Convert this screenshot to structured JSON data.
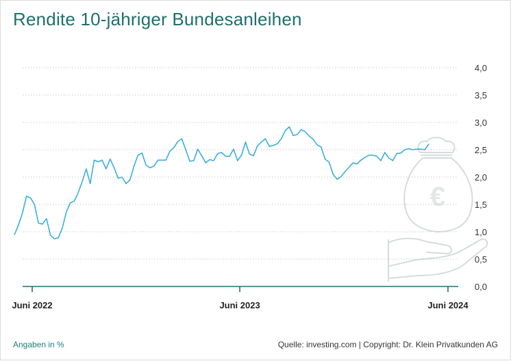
{
  "header": {
    "title": "Rendite 10-jähriger Bundesanleihen"
  },
  "footer": {
    "unit_note": "Angaben in %",
    "source": "Quelle: investing.com | Copyright: Dr. Klein Privatkunden AG"
  },
  "colors": {
    "line": "#3aaedc",
    "axis": "#1f6f6f",
    "title": "#1f6f6f",
    "grid": "#c8c8c8"
  },
  "watermark_icon": "money-bag-euro-in-hand-icon",
  "chart_data": {
    "type": "line",
    "title": "Rendite 10-jähriger Bundesanleihen",
    "xlabel": "",
    "ylabel": "",
    "ylim": [
      0,
      4.0
    ],
    "yticks": [
      0,
      0.5,
      1.0,
      1.5,
      2.0,
      2.5,
      3.0,
      3.5,
      4.0
    ],
    "ytick_labels": [
      "0,0",
      "0,5",
      "1,0",
      "1,5",
      "2,0",
      "2,5",
      "3,0",
      "3,5",
      "4,0"
    ],
    "xticks": [
      {
        "date": "2022-06-01",
        "label": "Juni 2022"
      },
      {
        "date": "2023-06-01",
        "label": "Juni 2023"
      },
      {
        "date": "2024-06-01",
        "label": "Juni 2024"
      }
    ],
    "grid": "horizontal dotted",
    "series": [
      {
        "points": [
          [
            "2022-05-01",
            0.95
          ],
          [
            "2022-05-08",
            1.13
          ],
          [
            "2022-05-15",
            1.35
          ],
          [
            "2022-05-22",
            1.65
          ],
          [
            "2022-05-29",
            1.62
          ],
          [
            "2022-06-05",
            1.5
          ],
          [
            "2022-06-12",
            1.16
          ],
          [
            "2022-06-19",
            1.14
          ],
          [
            "2022-06-26",
            1.24
          ],
          [
            "2022-07-03",
            0.94
          ],
          [
            "2022-07-10",
            0.87
          ],
          [
            "2022-07-17",
            0.89
          ],
          [
            "2022-07-24",
            1.07
          ],
          [
            "2022-07-31",
            1.36
          ],
          [
            "2022-08-07",
            1.53
          ],
          [
            "2022-08-14",
            1.56
          ],
          [
            "2022-08-21",
            1.72
          ],
          [
            "2022-08-28",
            1.92
          ],
          [
            "2022-09-04",
            2.15
          ],
          [
            "2022-09-11",
            1.88
          ],
          [
            "2022-09-18",
            2.31
          ],
          [
            "2022-09-25",
            2.28
          ],
          [
            "2022-10-02",
            2.31
          ],
          [
            "2022-10-09",
            2.15
          ],
          [
            "2022-10-16",
            2.33
          ],
          [
            "2022-10-23",
            2.17
          ],
          [
            "2022-10-30",
            1.98
          ],
          [
            "2022-11-06",
            2.0
          ],
          [
            "2022-11-13",
            1.88
          ],
          [
            "2022-11-20",
            1.95
          ],
          [
            "2022-11-27",
            2.2
          ],
          [
            "2022-12-04",
            2.4
          ],
          [
            "2022-12-11",
            2.44
          ],
          [
            "2022-12-18",
            2.22
          ],
          [
            "2022-12-25",
            2.17
          ],
          [
            "2023-01-01",
            2.2
          ],
          [
            "2023-01-08",
            2.31
          ],
          [
            "2023-01-15",
            2.31
          ],
          [
            "2023-01-22",
            2.31
          ],
          [
            "2023-01-29",
            2.47
          ],
          [
            "2023-02-05",
            2.54
          ],
          [
            "2023-02-12",
            2.65
          ],
          [
            "2023-02-19",
            2.7
          ],
          [
            "2023-02-26",
            2.5
          ],
          [
            "2023-03-05",
            2.29
          ],
          [
            "2023-03-12",
            2.3
          ],
          [
            "2023-03-19",
            2.51
          ],
          [
            "2023-03-26",
            2.39
          ],
          [
            "2023-04-02",
            2.26
          ],
          [
            "2023-04-09",
            2.32
          ],
          [
            "2023-04-16",
            2.3
          ],
          [
            "2023-04-23",
            2.43
          ],
          [
            "2023-04-30",
            2.45
          ],
          [
            "2023-05-07",
            2.38
          ],
          [
            "2023-05-14",
            2.38
          ],
          [
            "2023-05-21",
            2.51
          ],
          [
            "2023-05-28",
            2.3
          ],
          [
            "2023-06-04",
            2.4
          ],
          [
            "2023-06-11",
            2.64
          ],
          [
            "2023-06-18",
            2.42
          ],
          [
            "2023-06-25",
            2.39
          ],
          [
            "2023-07-02",
            2.57
          ],
          [
            "2023-07-09",
            2.64
          ],
          [
            "2023-07-16",
            2.7
          ],
          [
            "2023-07-23",
            2.56
          ],
          [
            "2023-07-30",
            2.58
          ],
          [
            "2023-08-06",
            2.61
          ],
          [
            "2023-08-13",
            2.7
          ],
          [
            "2023-08-20",
            2.85
          ],
          [
            "2023-08-27",
            2.92
          ],
          [
            "2023-09-03",
            2.76
          ],
          [
            "2023-09-10",
            2.78
          ],
          [
            "2023-09-17",
            2.87
          ],
          [
            "2023-09-24",
            2.83
          ],
          [
            "2023-10-01",
            2.75
          ],
          [
            "2023-10-08",
            2.69
          ],
          [
            "2023-10-15",
            2.59
          ],
          [
            "2023-10-22",
            2.55
          ],
          [
            "2023-10-29",
            2.33
          ],
          [
            "2023-11-05",
            2.27
          ],
          [
            "2023-11-12",
            2.05
          ],
          [
            "2023-11-19",
            1.96
          ],
          [
            "2023-11-26",
            2.01
          ],
          [
            "2023-12-03",
            2.1
          ],
          [
            "2023-12-10",
            2.18
          ],
          [
            "2023-12-17",
            2.26
          ],
          [
            "2023-12-24",
            2.24
          ],
          [
            "2023-12-31",
            2.31
          ],
          [
            "2024-01-07",
            2.36
          ],
          [
            "2024-01-14",
            2.4
          ],
          [
            "2024-01-21",
            2.4
          ],
          [
            "2024-01-28",
            2.38
          ],
          [
            "2024-02-04",
            2.3
          ],
          [
            "2024-02-11",
            2.45
          ],
          [
            "2024-02-18",
            2.35
          ],
          [
            "2024-02-25",
            2.3
          ],
          [
            "2024-03-03",
            2.43
          ],
          [
            "2024-03-10",
            2.44
          ],
          [
            "2024-03-17",
            2.5
          ],
          [
            "2024-03-24",
            2.52
          ],
          [
            "2024-03-31",
            2.5
          ],
          [
            "2024-04-07",
            2.51
          ],
          [
            "2024-04-14",
            2.51
          ],
          [
            "2024-04-21",
            2.5
          ],
          [
            "2024-04-28",
            2.6
          ]
        ]
      }
    ]
  }
}
